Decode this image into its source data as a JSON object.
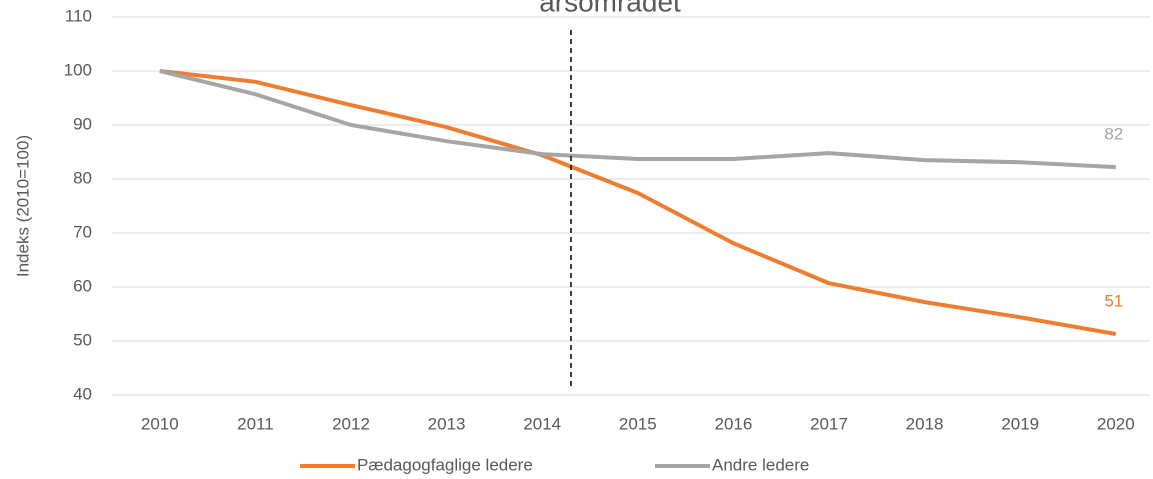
{
  "chart_data": {
    "type": "line",
    "title": "årsområdet",
    "ylabel": "Indeks (2010=100)",
    "categories": [
      "2010",
      "2011",
      "2012",
      "2013",
      "2014",
      "2015",
      "2016",
      "2017",
      "2018",
      "2019",
      "2020"
    ],
    "series": [
      {
        "name": "Pædagogfaglige ledere",
        "color": "#ed7d31",
        "values": [
          100,
          98,
          93.7,
          89.6,
          84.4,
          77.4,
          68.1,
          60.7,
          57.2,
          54.4,
          51.3
        ],
        "value_labels": [
          null,
          null,
          null,
          null,
          null,
          null,
          null,
          null,
          null,
          null,
          "51"
        ]
      },
      {
        "name": "Andre ledere",
        "color": "#a5a5a5",
        "values": [
          100,
          95.7,
          90,
          87,
          84.6,
          83.7,
          83.7,
          84.8,
          83.5,
          83.1,
          82.2
        ],
        "value_labels": [
          null,
          null,
          null,
          null,
          null,
          null,
          null,
          null,
          null,
          null,
          "82"
        ]
      }
    ],
    "ylim": [
      40,
      110
    ],
    "yticks": [
      40,
      50,
      60,
      70,
      80,
      90,
      100,
      110
    ],
    "grid": true
  }
}
